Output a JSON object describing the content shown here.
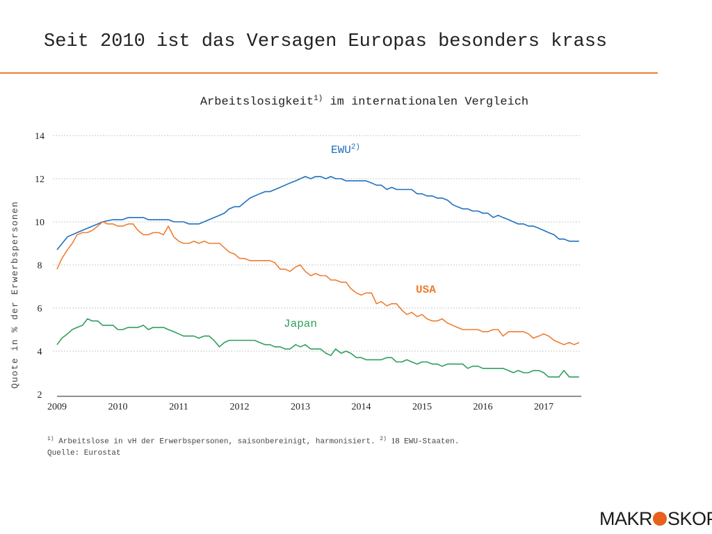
{
  "slide": {
    "title": "Seit 2010 ist das Versagen Europas besonders krass",
    "accent_color": "#ED7D31"
  },
  "chart_data": {
    "type": "line",
    "title": "Arbeitslosigkeit",
    "title_sup": "1)",
    "title_rest": " im internationalen Vergleich",
    "ylabel": "Quote in % der Erwerbspersonen",
    "xlabel": "",
    "xlim": [
      2009.0,
      2017.6
    ],
    "ylim": [
      2,
      14
    ],
    "yticks": [
      2,
      4,
      6,
      8,
      10,
      12,
      14
    ],
    "xticks": [
      "2009",
      "2010",
      "2011",
      "2012",
      "2013",
      "2014",
      "2015",
      "2016",
      "2017"
    ],
    "grid": true,
    "legend": "inline labels",
    "series": [
      {
        "name": "EWU",
        "name_sup": "2)",
        "color": "#1F6FBF",
        "points": [
          [
            2009.0,
            8.7
          ],
          [
            2009.17,
            9.3
          ],
          [
            2009.33,
            9.5
          ],
          [
            2009.5,
            9.7
          ],
          [
            2009.67,
            9.9
          ],
          [
            2009.75,
            10.0
          ],
          [
            2009.92,
            10.1
          ],
          [
            2010.0,
            10.1
          ],
          [
            2010.08,
            10.1
          ],
          [
            2010.17,
            10.2
          ],
          [
            2010.33,
            10.2
          ],
          [
            2010.42,
            10.2
          ],
          [
            2010.5,
            10.1
          ],
          [
            2010.67,
            10.1
          ],
          [
            2010.83,
            10.1
          ],
          [
            2010.92,
            10.0
          ],
          [
            2011.08,
            10.0
          ],
          [
            2011.17,
            9.9
          ],
          [
            2011.33,
            9.9
          ],
          [
            2011.5,
            10.1
          ],
          [
            2011.67,
            10.3
          ],
          [
            2011.75,
            10.4
          ],
          [
            2011.83,
            10.6
          ],
          [
            2011.92,
            10.7
          ],
          [
            2012.0,
            10.7
          ],
          [
            2012.17,
            11.1
          ],
          [
            2012.33,
            11.3
          ],
          [
            2012.42,
            11.4
          ],
          [
            2012.5,
            11.4
          ],
          [
            2012.67,
            11.6
          ],
          [
            2012.83,
            11.8
          ],
          [
            2012.92,
            11.9
          ],
          [
            2013.0,
            12.0
          ],
          [
            2013.08,
            12.1
          ],
          [
            2013.17,
            12.0
          ],
          [
            2013.25,
            12.1
          ],
          [
            2013.33,
            12.1
          ],
          [
            2013.42,
            12.0
          ],
          [
            2013.5,
            12.1
          ],
          [
            2013.58,
            12.0
          ],
          [
            2013.67,
            12.0
          ],
          [
            2013.75,
            11.9
          ],
          [
            2013.83,
            11.9
          ],
          [
            2014.0,
            11.9
          ],
          [
            2014.08,
            11.9
          ],
          [
            2014.17,
            11.8
          ],
          [
            2014.25,
            11.7
          ],
          [
            2014.33,
            11.7
          ],
          [
            2014.42,
            11.5
          ],
          [
            2014.5,
            11.6
          ],
          [
            2014.58,
            11.5
          ],
          [
            2014.67,
            11.5
          ],
          [
            2014.83,
            11.5
          ],
          [
            2014.92,
            11.3
          ],
          [
            2015.0,
            11.3
          ],
          [
            2015.08,
            11.2
          ],
          [
            2015.17,
            11.2
          ],
          [
            2015.25,
            11.1
          ],
          [
            2015.33,
            11.1
          ],
          [
            2015.42,
            11.0
          ],
          [
            2015.5,
            10.8
          ],
          [
            2015.58,
            10.7
          ],
          [
            2015.67,
            10.6
          ],
          [
            2015.75,
            10.6
          ],
          [
            2015.83,
            10.5
          ],
          [
            2015.92,
            10.5
          ],
          [
            2016.0,
            10.4
          ],
          [
            2016.08,
            10.4
          ],
          [
            2016.17,
            10.2
          ],
          [
            2016.25,
            10.3
          ],
          [
            2016.33,
            10.2
          ],
          [
            2016.42,
            10.1
          ],
          [
            2016.5,
            10.0
          ],
          [
            2016.58,
            9.9
          ],
          [
            2016.67,
            9.9
          ],
          [
            2016.75,
            9.8
          ],
          [
            2016.83,
            9.8
          ],
          [
            2016.92,
            9.7
          ],
          [
            2017.0,
            9.6
          ],
          [
            2017.08,
            9.5
          ],
          [
            2017.17,
            9.4
          ],
          [
            2017.25,
            9.2
          ],
          [
            2017.33,
            9.2
          ],
          [
            2017.42,
            9.1
          ],
          [
            2017.5,
            9.1
          ],
          [
            2017.58,
            9.1
          ]
        ]
      },
      {
        "name": "USA",
        "color": "#ED7D31",
        "points": [
          [
            2009.0,
            7.8
          ],
          [
            2009.08,
            8.3
          ],
          [
            2009.17,
            8.7
          ],
          [
            2009.25,
            9.0
          ],
          [
            2009.33,
            9.4
          ],
          [
            2009.42,
            9.5
          ],
          [
            2009.5,
            9.5
          ],
          [
            2009.58,
            9.6
          ],
          [
            2009.67,
            9.8
          ],
          [
            2009.75,
            10.0
          ],
          [
            2009.83,
            9.9
          ],
          [
            2009.92,
            9.9
          ],
          [
            2010.0,
            9.8
          ],
          [
            2010.08,
            9.8
          ],
          [
            2010.17,
            9.9
          ],
          [
            2010.25,
            9.9
          ],
          [
            2010.33,
            9.6
          ],
          [
            2010.42,
            9.4
          ],
          [
            2010.5,
            9.4
          ],
          [
            2010.58,
            9.5
          ],
          [
            2010.67,
            9.5
          ],
          [
            2010.75,
            9.4
          ],
          [
            2010.83,
            9.8
          ],
          [
            2010.92,
            9.3
          ],
          [
            2011.0,
            9.1
          ],
          [
            2011.08,
            9.0
          ],
          [
            2011.17,
            9.0
          ],
          [
            2011.25,
            9.1
          ],
          [
            2011.33,
            9.0
          ],
          [
            2011.42,
            9.1
          ],
          [
            2011.5,
            9.0
          ],
          [
            2011.58,
            9.0
          ],
          [
            2011.67,
            9.0
          ],
          [
            2011.75,
            8.8
          ],
          [
            2011.83,
            8.6
          ],
          [
            2011.92,
            8.5
          ],
          [
            2012.0,
            8.3
          ],
          [
            2012.08,
            8.3
          ],
          [
            2012.17,
            8.2
          ],
          [
            2012.25,
            8.2
          ],
          [
            2012.33,
            8.2
          ],
          [
            2012.42,
            8.2
          ],
          [
            2012.5,
            8.2
          ],
          [
            2012.58,
            8.1
          ],
          [
            2012.67,
            7.8
          ],
          [
            2012.75,
            7.8
          ],
          [
            2012.83,
            7.7
          ],
          [
            2012.92,
            7.9
          ],
          [
            2013.0,
            8.0
          ],
          [
            2013.08,
            7.7
          ],
          [
            2013.17,
            7.5
          ],
          [
            2013.25,
            7.6
          ],
          [
            2013.33,
            7.5
          ],
          [
            2013.42,
            7.5
          ],
          [
            2013.5,
            7.3
          ],
          [
            2013.58,
            7.3
          ],
          [
            2013.67,
            7.2
          ],
          [
            2013.75,
            7.2
          ],
          [
            2013.83,
            6.9
          ],
          [
            2013.92,
            6.7
          ],
          [
            2014.0,
            6.6
          ],
          [
            2014.08,
            6.7
          ],
          [
            2014.17,
            6.7
          ],
          [
            2014.25,
            6.2
          ],
          [
            2014.33,
            6.3
          ],
          [
            2014.42,
            6.1
          ],
          [
            2014.5,
            6.2
          ],
          [
            2014.58,
            6.2
          ],
          [
            2014.67,
            5.9
          ],
          [
            2014.75,
            5.7
          ],
          [
            2014.83,
            5.8
          ],
          [
            2014.92,
            5.6
          ],
          [
            2015.0,
            5.7
          ],
          [
            2015.08,
            5.5
          ],
          [
            2015.17,
            5.4
          ],
          [
            2015.25,
            5.4
          ],
          [
            2015.33,
            5.5
          ],
          [
            2015.42,
            5.3
          ],
          [
            2015.5,
            5.2
          ],
          [
            2015.58,
            5.1
          ],
          [
            2015.67,
            5.0
          ],
          [
            2015.75,
            5.0
          ],
          [
            2015.83,
            5.0
          ],
          [
            2015.92,
            5.0
          ],
          [
            2016.0,
            4.9
          ],
          [
            2016.08,
            4.9
          ],
          [
            2016.17,
            5.0
          ],
          [
            2016.25,
            5.0
          ],
          [
            2016.33,
            4.7
          ],
          [
            2016.42,
            4.9
          ],
          [
            2016.5,
            4.9
          ],
          [
            2016.58,
            4.9
          ],
          [
            2016.67,
            4.9
          ],
          [
            2016.75,
            4.8
          ],
          [
            2016.83,
            4.6
          ],
          [
            2016.92,
            4.7
          ],
          [
            2017.0,
            4.8
          ],
          [
            2017.08,
            4.7
          ],
          [
            2017.17,
            4.5
          ],
          [
            2017.25,
            4.4
          ],
          [
            2017.33,
            4.3
          ],
          [
            2017.42,
            4.4
          ],
          [
            2017.5,
            4.3
          ],
          [
            2017.58,
            4.4
          ]
        ]
      },
      {
        "name": "Japan",
        "color": "#2E9E5B",
        "points": [
          [
            2009.0,
            4.3
          ],
          [
            2009.08,
            4.6
          ],
          [
            2009.17,
            4.8
          ],
          [
            2009.25,
            5.0
          ],
          [
            2009.33,
            5.1
          ],
          [
            2009.42,
            5.2
          ],
          [
            2009.5,
            5.5
          ],
          [
            2009.58,
            5.4
          ],
          [
            2009.67,
            5.4
          ],
          [
            2009.75,
            5.2
          ],
          [
            2009.83,
            5.2
          ],
          [
            2009.92,
            5.2
          ],
          [
            2010.0,
            5.0
          ],
          [
            2010.08,
            5.0
          ],
          [
            2010.17,
            5.1
          ],
          [
            2010.25,
            5.1
          ],
          [
            2010.33,
            5.1
          ],
          [
            2010.42,
            5.2
          ],
          [
            2010.5,
            5.0
          ],
          [
            2010.58,
            5.1
          ],
          [
            2010.67,
            5.1
          ],
          [
            2010.75,
            5.1
          ],
          [
            2010.83,
            5.0
          ],
          [
            2010.92,
            4.9
          ],
          [
            2011.0,
            4.8
          ],
          [
            2011.08,
            4.7
          ],
          [
            2011.17,
            4.7
          ],
          [
            2011.25,
            4.7
          ],
          [
            2011.33,
            4.6
          ],
          [
            2011.42,
            4.7
          ],
          [
            2011.5,
            4.7
          ],
          [
            2011.58,
            4.5
          ],
          [
            2011.67,
            4.2
          ],
          [
            2011.75,
            4.4
          ],
          [
            2011.83,
            4.5
          ],
          [
            2011.92,
            4.5
          ],
          [
            2012.0,
            4.5
          ],
          [
            2012.08,
            4.5
          ],
          [
            2012.17,
            4.5
          ],
          [
            2012.25,
            4.5
          ],
          [
            2012.33,
            4.4
          ],
          [
            2012.42,
            4.3
          ],
          [
            2012.5,
            4.3
          ],
          [
            2012.58,
            4.2
          ],
          [
            2012.67,
            4.2
          ],
          [
            2012.75,
            4.1
          ],
          [
            2012.83,
            4.1
          ],
          [
            2012.92,
            4.3
          ],
          [
            2013.0,
            4.2
          ],
          [
            2013.08,
            4.3
          ],
          [
            2013.17,
            4.1
          ],
          [
            2013.25,
            4.1
          ],
          [
            2013.33,
            4.1
          ],
          [
            2013.42,
            3.9
          ],
          [
            2013.5,
            3.8
          ],
          [
            2013.58,
            4.1
          ],
          [
            2013.67,
            3.9
          ],
          [
            2013.75,
            4.0
          ],
          [
            2013.83,
            3.9
          ],
          [
            2013.92,
            3.7
          ],
          [
            2014.0,
            3.7
          ],
          [
            2014.08,
            3.6
          ],
          [
            2014.17,
            3.6
          ],
          [
            2014.25,
            3.6
          ],
          [
            2014.33,
            3.6
          ],
          [
            2014.42,
            3.7
          ],
          [
            2014.5,
            3.7
          ],
          [
            2014.58,
            3.5
          ],
          [
            2014.67,
            3.5
          ],
          [
            2014.75,
            3.6
          ],
          [
            2014.83,
            3.5
          ],
          [
            2014.92,
            3.4
          ],
          [
            2015.0,
            3.5
          ],
          [
            2015.08,
            3.5
          ],
          [
            2015.17,
            3.4
          ],
          [
            2015.25,
            3.4
          ],
          [
            2015.33,
            3.3
          ],
          [
            2015.42,
            3.4
          ],
          [
            2015.5,
            3.4
          ],
          [
            2015.58,
            3.4
          ],
          [
            2015.67,
            3.4
          ],
          [
            2015.75,
            3.2
          ],
          [
            2015.83,
            3.3
          ],
          [
            2015.92,
            3.3
          ],
          [
            2016.0,
            3.2
          ],
          [
            2016.08,
            3.2
          ],
          [
            2016.17,
            3.2
          ],
          [
            2016.25,
            3.2
          ],
          [
            2016.33,
            3.2
          ],
          [
            2016.42,
            3.1
          ],
          [
            2016.5,
            3.0
          ],
          [
            2016.58,
            3.1
          ],
          [
            2016.67,
            3.0
          ],
          [
            2016.75,
            3.0
          ],
          [
            2016.83,
            3.1
          ],
          [
            2016.92,
            3.1
          ],
          [
            2017.0,
            3.0
          ],
          [
            2017.08,
            2.8
          ],
          [
            2017.17,
            2.8
          ],
          [
            2017.25,
            2.8
          ],
          [
            2017.33,
            3.1
          ],
          [
            2017.42,
            2.8
          ],
          [
            2017.5,
            2.8
          ],
          [
            2017.58,
            2.8
          ]
        ]
      }
    ]
  },
  "footnote": {
    "sup1": "1)",
    "text1": " Arbeitslose in vH der Erwerbspersonen, saisonbereinigt, harmonisiert. ",
    "sup2": "2)",
    "num": "18",
    "text2": " EWU-Staaten.",
    "source": "Quelle: Eurostat"
  },
  "logo": {
    "left": "MAKR",
    "right": "SKOP",
    "dot_color": "#E8601C"
  }
}
